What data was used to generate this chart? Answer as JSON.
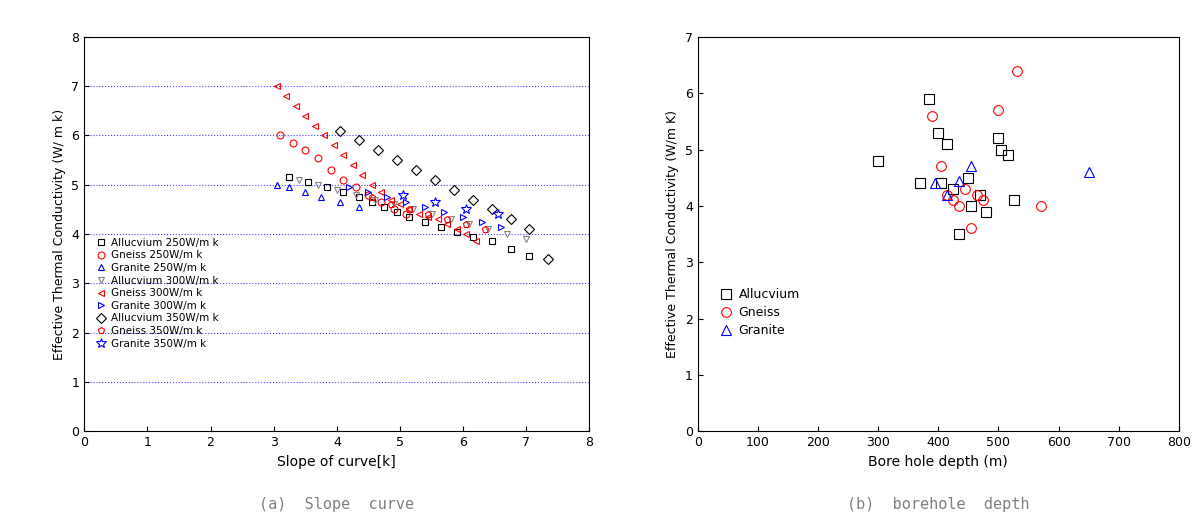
{
  "plot_a": {
    "xlabel": "Slope of curve[k]",
    "ylabel": "Effective Thermal Conductivity (W/ m k)",
    "caption": "(a)  Slope  curve",
    "xlim": [
      0,
      8
    ],
    "ylim": [
      0,
      8
    ],
    "xticks": [
      0,
      1,
      2,
      3,
      4,
      5,
      6,
      7,
      8
    ],
    "yticks": [
      0,
      1,
      2,
      3,
      4,
      5,
      6,
      7,
      8
    ],
    "series": [
      {
        "label": "Allucvium 250W/m k",
        "color": "black",
        "marker": "s",
        "markersize": 5,
        "fillstyle": "none",
        "x": [
          3.25,
          3.55,
          3.85,
          4.1,
          4.35,
          4.55,
          4.75,
          4.95,
          5.15,
          5.4,
          5.65,
          5.9,
          6.15,
          6.45,
          6.75,
          7.05
        ],
        "y": [
          5.15,
          5.05,
          4.95,
          4.85,
          4.75,
          4.65,
          4.55,
          4.45,
          4.35,
          4.25,
          4.15,
          4.05,
          3.95,
          3.85,
          3.7,
          3.55
        ]
      },
      {
        "label": "Gneiss 250W/m k",
        "color": "red",
        "marker": "o",
        "markersize": 5,
        "fillstyle": "none",
        "x": [
          3.1,
          3.3,
          3.5,
          3.7,
          3.9,
          4.1,
          4.3,
          4.5,
          4.7,
          4.9,
          5.1
        ],
        "y": [
          6.0,
          5.85,
          5.7,
          5.55,
          5.3,
          5.1,
          4.95,
          4.8,
          4.65,
          4.5,
          4.4
        ]
      },
      {
        "label": "Granite 250W/m k",
        "color": "blue",
        "marker": "^",
        "markersize": 5,
        "fillstyle": "none",
        "x": [
          3.05,
          3.25,
          3.5,
          3.75,
          4.05,
          4.35
        ],
        "y": [
          5.0,
          4.95,
          4.85,
          4.75,
          4.65,
          4.55
        ]
      },
      {
        "label": "Allucvium 300W/m k",
        "color": "#888888",
        "marker": "v",
        "markersize": 5,
        "fillstyle": "none",
        "x": [
          3.4,
          3.7,
          4.0,
          4.3,
          4.6,
          4.9,
          5.2,
          5.5,
          5.8,
          6.1,
          6.4,
          6.7,
          7.0
        ],
        "y": [
          5.1,
          5.0,
          4.9,
          4.8,
          4.7,
          4.6,
          4.5,
          4.4,
          4.3,
          4.2,
          4.1,
          4.0,
          3.9
        ]
      },
      {
        "label": "Gneiss 300W/m k",
        "color": "red",
        "marker": "<",
        "markersize": 5,
        "fillstyle": "none",
        "x": [
          3.05,
          3.2,
          3.35,
          3.5,
          3.65,
          3.8,
          3.95,
          4.1,
          4.25,
          4.4,
          4.55,
          4.7,
          4.85,
          5.0,
          5.15,
          5.3,
          5.45,
          5.6,
          5.75,
          5.9,
          6.05,
          6.2
        ],
        "y": [
          7.0,
          6.8,
          6.6,
          6.4,
          6.2,
          6.0,
          5.8,
          5.6,
          5.4,
          5.2,
          5.0,
          4.85,
          4.7,
          4.6,
          4.5,
          4.4,
          4.35,
          4.3,
          4.2,
          4.1,
          4.0,
          3.85
        ]
      },
      {
        "label": "Granite 300W/m k",
        "color": "blue",
        "marker": ">",
        "markersize": 5,
        "fillstyle": "none",
        "x": [
          4.2,
          4.5,
          4.8,
          5.1,
          5.4,
          5.7,
          6.0,
          6.3,
          6.6
        ],
        "y": [
          4.95,
          4.85,
          4.75,
          4.65,
          4.55,
          4.45,
          4.35,
          4.25,
          4.15
        ]
      },
      {
        "label": "Allucvium 350W/m k",
        "color": "black",
        "marker": "D",
        "markersize": 5,
        "fillstyle": "none",
        "x": [
          4.05,
          4.35,
          4.65,
          4.95,
          5.25,
          5.55,
          5.85,
          6.15,
          6.45,
          6.75,
          7.05,
          7.35
        ],
        "y": [
          6.1,
          5.9,
          5.7,
          5.5,
          5.3,
          5.1,
          4.9,
          4.7,
          4.5,
          4.3,
          4.1,
          3.5
        ]
      },
      {
        "label": "Gneiss 350W/m k",
        "color": "red",
        "marker": "p",
        "markersize": 5,
        "fillstyle": "none",
        "x": [
          4.55,
          4.85,
          5.15,
          5.45,
          5.75,
          6.05,
          6.35
        ],
        "y": [
          4.75,
          4.6,
          4.5,
          4.4,
          4.3,
          4.2,
          4.1
        ]
      },
      {
        "label": "Granite 350W/m k",
        "color": "blue",
        "marker": "*",
        "markersize": 7,
        "fillstyle": "none",
        "x": [
          5.05,
          5.55,
          6.05,
          6.55
        ],
        "y": [
          4.8,
          4.65,
          4.5,
          4.4
        ]
      }
    ]
  },
  "plot_b": {
    "caption": "(b)  borehole  depth",
    "xlabel": "Bore hole depth (m)",
    "ylabel": "Effective Thermal Conductivity (W/m K)",
    "xlim": [
      0,
      800
    ],
    "ylim": [
      0,
      7
    ],
    "xticks": [
      0,
      100,
      200,
      300,
      400,
      500,
      600,
      700,
      800
    ],
    "yticks": [
      0,
      1,
      2,
      3,
      4,
      5,
      6,
      7
    ],
    "series": [
      {
        "label": "Allucvium",
        "color": "black",
        "marker": "s",
        "markersize": 7,
        "fillstyle": "none",
        "x": [
          300,
          370,
          385,
          400,
          405,
          415,
          425,
          435,
          450,
          455,
          470,
          480,
          500,
          505,
          515,
          525
        ],
        "y": [
          4.8,
          4.4,
          5.9,
          5.3,
          4.4,
          5.1,
          4.3,
          3.5,
          4.5,
          4.0,
          4.2,
          3.9,
          5.2,
          5.0,
          4.9,
          4.1
        ]
      },
      {
        "label": "Gneiss",
        "color": "red",
        "marker": "o",
        "markersize": 7,
        "fillstyle": "none",
        "x": [
          390,
          405,
          415,
          425,
          435,
          445,
          455,
          465,
          475,
          500,
          530,
          570
        ],
        "y": [
          5.6,
          4.7,
          4.2,
          4.1,
          4.0,
          4.3,
          3.6,
          4.2,
          4.1,
          5.7,
          6.4,
          4.0
        ]
      },
      {
        "label": "Granite",
        "color": "blue",
        "marker": "^",
        "markersize": 7,
        "fillstyle": "none",
        "x": [
          395,
          415,
          435,
          455,
          650
        ],
        "y": [
          4.4,
          4.2,
          4.45,
          4.7,
          4.6
        ]
      }
    ]
  },
  "grid_color": "#4444ff",
  "grid_linestyle": ":",
  "grid_linewidth": 0.8
}
